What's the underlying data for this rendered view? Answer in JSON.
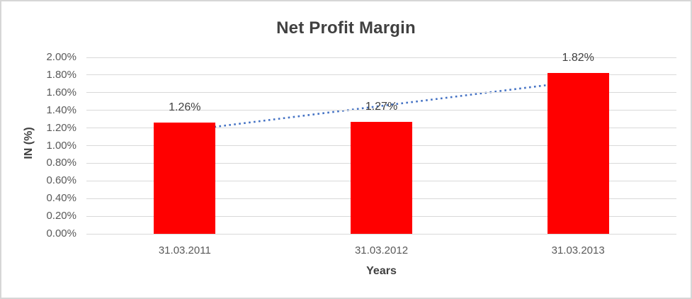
{
  "window": {
    "background": "#FFFFFF",
    "border_color": "#D6D6D6"
  },
  "chart_data": {
    "type": "bar",
    "title": "Net Profit Margin",
    "xlabel": "Years",
    "ylabel": "IN (%)",
    "categories": [
      "31.03.2011",
      "31.03.2012",
      "31.03.2013"
    ],
    "values": [
      1.26,
      1.27,
      1.82
    ],
    "value_labels": [
      "1.26%",
      "1.27%",
      "1.82%"
    ],
    "ylim": [
      0,
      2.0
    ],
    "ytick_step": 0.2,
    "ytick_labels": [
      "0.00%",
      "0.20%",
      "0.40%",
      "0.60%",
      "0.80%",
      "1.00%",
      "1.20%",
      "1.40%",
      "1.60%",
      "1.80%",
      "2.00%"
    ],
    "grid": true,
    "legend": "none",
    "bar_color": "#FF0000",
    "trendline": {
      "kind": "linear",
      "style": "dotted",
      "color": "#4472C4",
      "start_value": 1.17,
      "end_value": 1.73
    },
    "colors": {
      "title": "#404040",
      "axis_titles": "#404040",
      "tick_labels": "#595959",
      "data_labels": "#404040",
      "gridline": "#D9D9D9"
    }
  }
}
